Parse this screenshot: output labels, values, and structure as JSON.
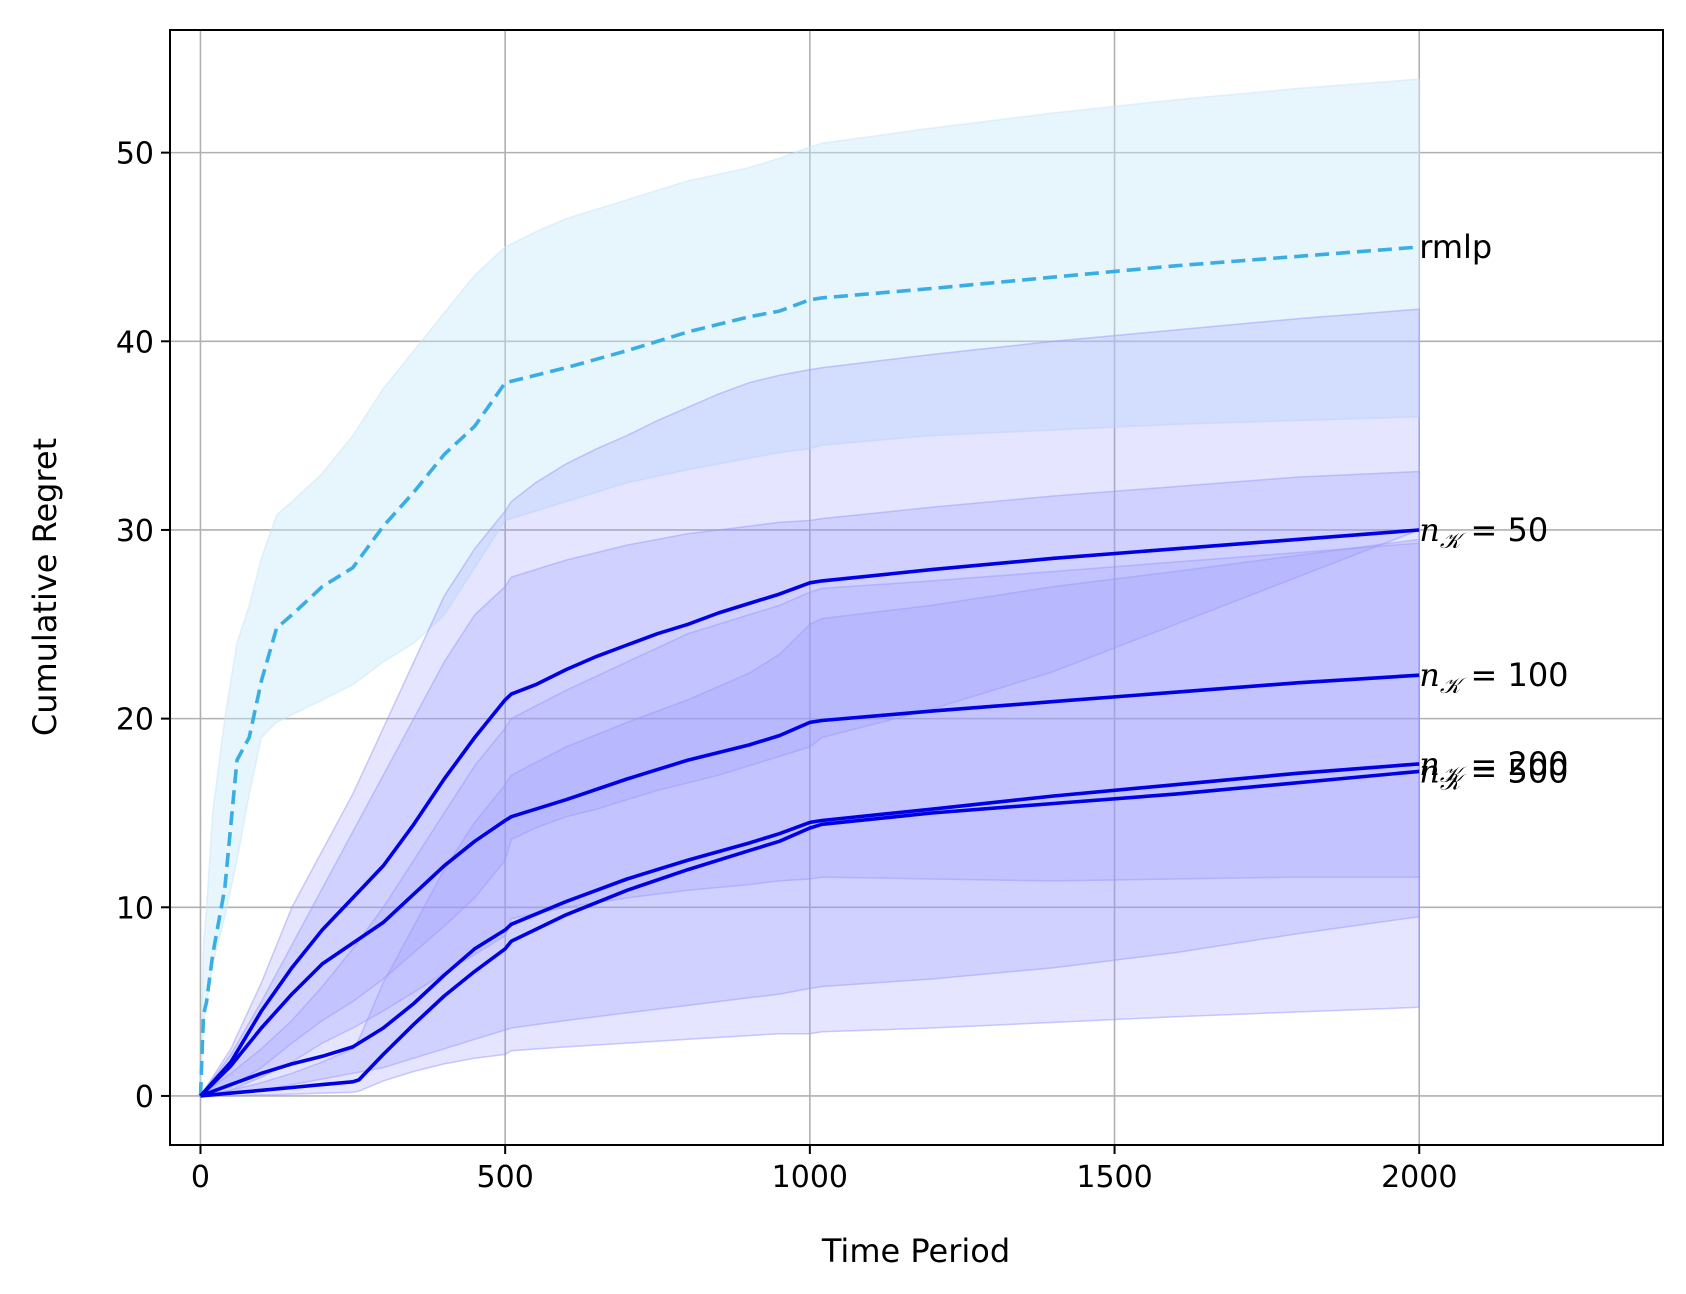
{
  "chart_data": {
    "type": "line",
    "title": "",
    "xlabel": "Time Period",
    "ylabel": "Cumulative Regret",
    "xlim": [
      -50,
      2400
    ],
    "ylim": [
      -2.6,
      56.5
    ],
    "xticks": [
      "0",
      "500",
      "1000",
      "1500",
      "2000"
    ],
    "yticks": [
      "0",
      "10",
      "20",
      "30",
      "40",
      "50"
    ],
    "grid": true,
    "legend": "none",
    "series": [
      {
        "label": "rmlp",
        "label_parts": [
          "rmlp",
          "",
          ""
        ],
        "color": "#3aaee3",
        "band_color": "#c6e8f8",
        "style": "dashed",
        "x": [
          0,
          5,
          10,
          20,
          40,
          60,
          80,
          100,
          125,
          150,
          200,
          250,
          300,
          350,
          400,
          450,
          500,
          550,
          600,
          700,
          800,
          900,
          950,
          1000,
          1020,
          1200,
          1400,
          1600,
          1800,
          2000
        ],
        "y": [
          0,
          4.3,
          5,
          7.5,
          11,
          17.8,
          19,
          22,
          24.8,
          25.5,
          27,
          28,
          30.2,
          32,
          34,
          35.5,
          37.8,
          38.2,
          38.6,
          39.5,
          40.5,
          41.3,
          41.6,
          42.2,
          42.3,
          42.8,
          43.4,
          44,
          44.5,
          45
        ],
        "lower": [
          0,
          4,
          5,
          7,
          9.5,
          12.5,
          16,
          19,
          19.8,
          20.2,
          21,
          21.8,
          23,
          24,
          25.5,
          28,
          30.5,
          31,
          31.5,
          32.5,
          33.2,
          33.8,
          34.1,
          34.3,
          34.5,
          35,
          35.3,
          35.6,
          35.8,
          36
        ],
        "upper": [
          0,
          8,
          10,
          15,
          20,
          24,
          26,
          28.5,
          30.8,
          31.5,
          33,
          35,
          37.5,
          39.5,
          41.5,
          43.5,
          45,
          45.8,
          46.5,
          47.5,
          48.5,
          49.2,
          49.7,
          50.3,
          50.5,
          51.3,
          52.1,
          52.8,
          53.4,
          53.9
        ]
      },
      {
        "label": "n_K = 50",
        "label_parts": [
          "n",
          "𝒦",
          " = 50"
        ],
        "color": "#0000e6",
        "band_color": "#9999ff",
        "style": "solid",
        "x": [
          0,
          50,
          100,
          150,
          200,
          250,
          300,
          350,
          400,
          450,
          500,
          510,
          550,
          600,
          650,
          700,
          750,
          800,
          850,
          900,
          950,
          1000,
          1020,
          1200,
          1400,
          1600,
          1800,
          2000
        ],
        "y": [
          0,
          1.8,
          4.5,
          6.8,
          8.8,
          10.5,
          12.2,
          14.4,
          16.8,
          19,
          21,
          21.3,
          21.8,
          22.6,
          23.3,
          23.9,
          24.5,
          25,
          25.6,
          26.1,
          26.6,
          27.2,
          27.3,
          27.9,
          28.5,
          29,
          29.5,
          30
        ],
        "lower": [
          0,
          0.5,
          1.5,
          2.8,
          4,
          5,
          6.2,
          7.6,
          9,
          10.5,
          12.5,
          13.6,
          14.2,
          14.8,
          15.2,
          15.7,
          16.2,
          16.6,
          17,
          17.5,
          18,
          18.5,
          19,
          20.5,
          22.5,
          25,
          27.5,
          30
        ],
        "upper": [
          0,
          2.5,
          6,
          10,
          13,
          16,
          19.5,
          23,
          26.5,
          29,
          31,
          31.5,
          32.5,
          33.5,
          34.3,
          35,
          35.8,
          36.5,
          37.2,
          37.8,
          38.2,
          38.5,
          38.6,
          39.3,
          40,
          40.6,
          41.2,
          41.7
        ]
      },
      {
        "label": "n_K = 100",
        "label_parts": [
          "n",
          "𝒦",
          " = 100"
        ],
        "color": "#0000e6",
        "band_color": "#9999ff",
        "style": "solid",
        "x": [
          0,
          50,
          100,
          150,
          200,
          250,
          300,
          350,
          400,
          450,
          500,
          510,
          600,
          700,
          800,
          900,
          950,
          1000,
          1020,
          1200,
          1400,
          1600,
          1800,
          2000
        ],
        "y": [
          0,
          1.6,
          3.6,
          5.4,
          7,
          8.1,
          9.2,
          10.7,
          12.2,
          13.5,
          14.6,
          14.8,
          15.7,
          16.8,
          17.8,
          18.6,
          19.1,
          19.8,
          19.9,
          20.4,
          20.9,
          21.4,
          21.9,
          22.3
        ],
        "lower": [
          0,
          0.3,
          1,
          1.8,
          2.8,
          3.6,
          4.5,
          5.5,
          6.5,
          7.5,
          8.5,
          9.4,
          10,
          10.5,
          10.9,
          11.2,
          11.4,
          11.5,
          11.6,
          11.5,
          11.4,
          11.5,
          11.6,
          11.6
        ],
        "upper": [
          0,
          2.2,
          5,
          8,
          11,
          14,
          17,
          20,
          23,
          25.5,
          27,
          27.5,
          28.4,
          29.2,
          29.8,
          30.2,
          30.4,
          30.5,
          30.6,
          31.2,
          31.8,
          32.3,
          32.8,
          33.1
        ]
      },
      {
        "label": "n_K = 200",
        "label_parts": [
          "n",
          "𝒦",
          " = 200"
        ],
        "color": "#0000e6",
        "band_color": "#9999ff",
        "style": "solid",
        "x": [
          0,
          50,
          100,
          150,
          200,
          250,
          300,
          350,
          400,
          450,
          500,
          510,
          600,
          700,
          800,
          900,
          950,
          1000,
          1020,
          1200,
          1400,
          1600,
          1800,
          2000
        ],
        "y": [
          0,
          0.6,
          1.2,
          1.7,
          2.1,
          2.6,
          3.6,
          4.9,
          6.4,
          7.8,
          8.8,
          9.1,
          10.3,
          11.5,
          12.5,
          13.4,
          13.9,
          14.5,
          14.6,
          15.2,
          15.9,
          16.5,
          17.1,
          17.6
        ],
        "lower": [
          0,
          0.1,
          0.3,
          0.6,
          0.9,
          1.2,
          1.5,
          2,
          2.5,
          3,
          3.5,
          3.6,
          4,
          4.4,
          4.8,
          5.2,
          5.4,
          5.7,
          5.8,
          6.2,
          6.8,
          7.6,
          8.6,
          9.5
        ],
        "upper": [
          0,
          1.2,
          2.5,
          4,
          5.8,
          7.8,
          10,
          12.5,
          15,
          17.5,
          19.5,
          20,
          21.5,
          23,
          24.5,
          25.5,
          26,
          26.7,
          26.9,
          27.3,
          27.8,
          28.3,
          28.8,
          29.3
        ]
      },
      {
        "label": "n_K = 500",
        "label_parts": [
          "n",
          "𝒦",
          " = 500"
        ],
        "color": "#0000e6",
        "band_color": "#9999ff",
        "style": "solid",
        "x": [
          0,
          50,
          100,
          150,
          200,
          250,
          260,
          300,
          350,
          400,
          450,
          500,
          510,
          600,
          700,
          800,
          900,
          950,
          1000,
          1020,
          1200,
          1400,
          1600,
          2000
        ],
        "y": [
          0,
          0.15,
          0.3,
          0.45,
          0.6,
          0.75,
          0.85,
          2.2,
          3.8,
          5.3,
          6.6,
          7.8,
          8.2,
          9.6,
          10.9,
          12,
          13,
          13.5,
          14.2,
          14.4,
          15,
          15.5,
          16,
          17.2
        ],
        "lower": [
          0,
          0,
          0.05,
          0.1,
          0.15,
          0.2,
          0.25,
          0.8,
          1.3,
          1.7,
          2,
          2.2,
          2.4,
          2.6,
          2.8,
          3,
          3.2,
          3.3,
          3.3,
          3.4,
          3.6,
          3.9,
          4.2,
          4.7
        ],
        "upper": [
          0,
          0.3,
          0.7,
          1.2,
          1.8,
          2.5,
          3,
          6,
          9,
          12,
          14.5,
          16.5,
          17,
          18.5,
          19.8,
          21,
          22.4,
          23.4,
          25,
          25.3,
          26,
          27,
          27.8,
          29.5
        ]
      }
    ]
  }
}
